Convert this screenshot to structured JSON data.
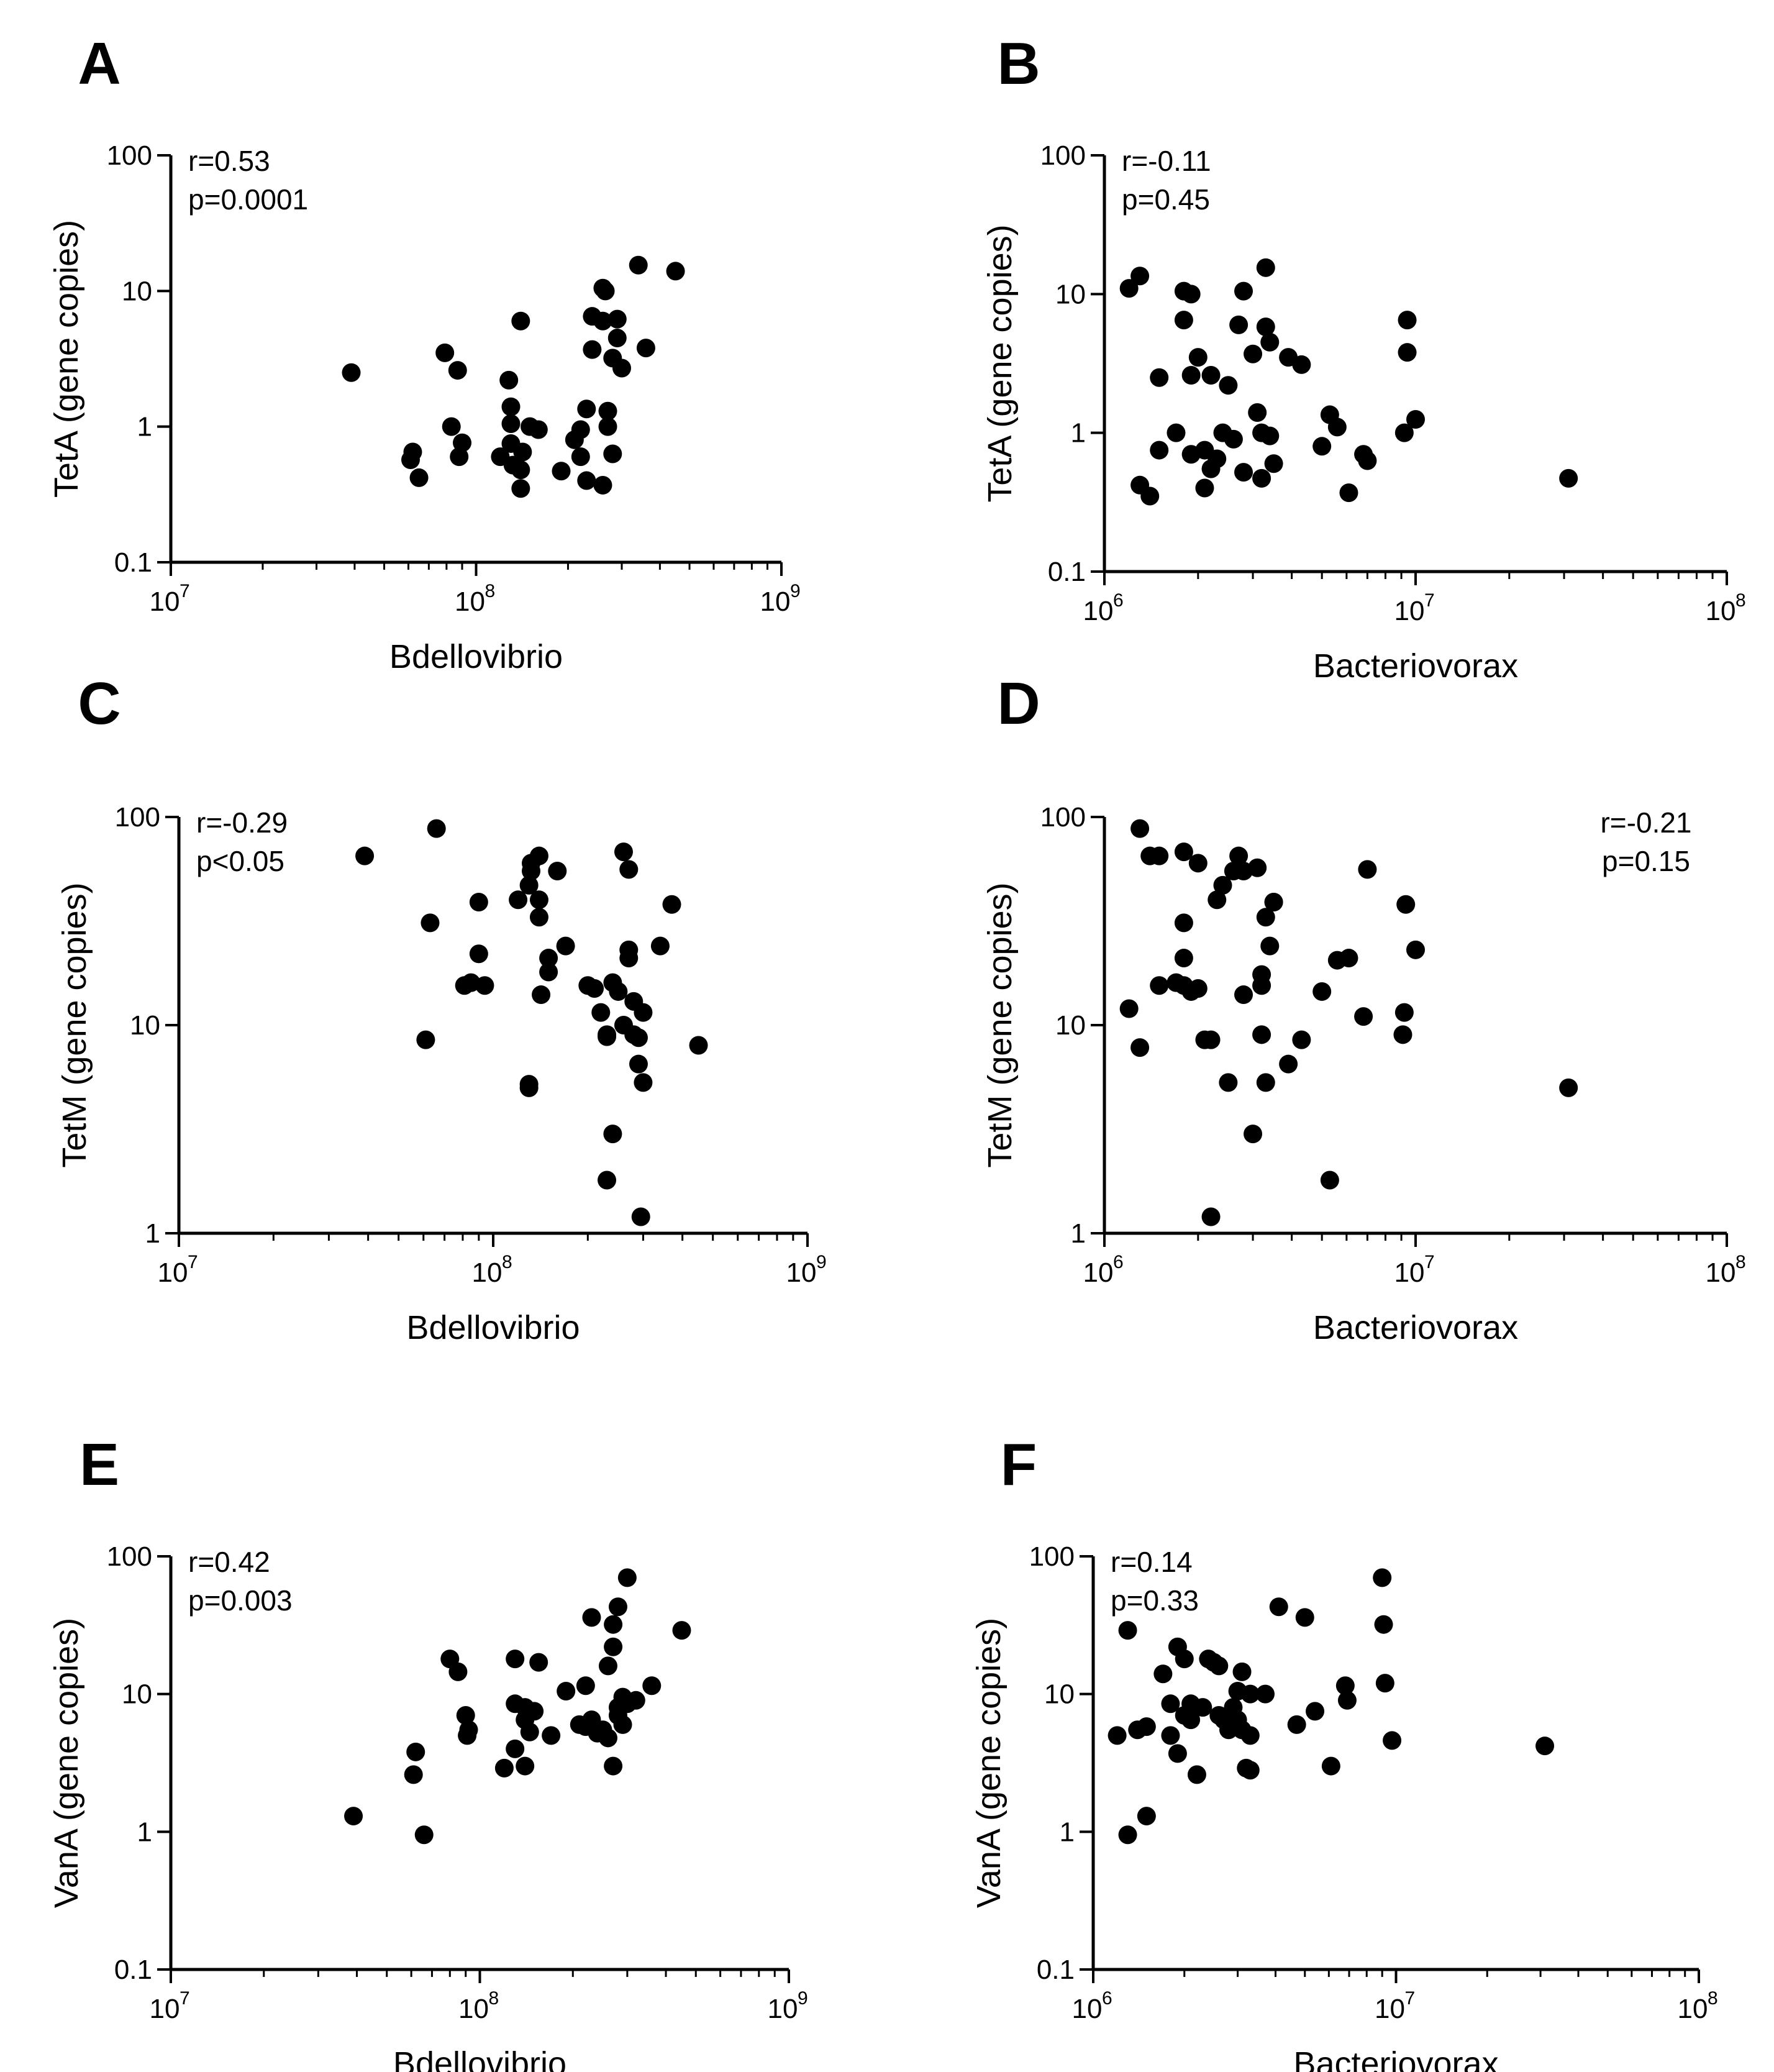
{
  "chart_data": [
    {
      "panel": "A",
      "type": "scatter",
      "xlabel": "Bdellovibrio",
      "ylabel": "TetA (gene copies)",
      "x_scale": "log",
      "y_scale": "log",
      "xlim": [
        10000000,
        1000000000
      ],
      "ylim": [
        0.1,
        100
      ],
      "x_ticks": [
        {
          "base": "10",
          "exp": "7"
        },
        {
          "base": "10",
          "exp": "8"
        },
        {
          "base": "10",
          "exp": "9"
        }
      ],
      "y_ticks": [
        "0.1",
        "1",
        "10",
        "100"
      ],
      "annotations": [
        "r=0.53",
        "p=0.0001"
      ],
      "annotation_position": "top-left",
      "points": [
        [
          39000000.0,
          2.5
        ],
        [
          61000000.0,
          0.57
        ],
        [
          62000000.0,
          0.65
        ],
        [
          65000000.0,
          0.42
        ],
        [
          79000000.0,
          3.5
        ],
        [
          83000000.0,
          1.0
        ],
        [
          87000000.0,
          2.6
        ],
        [
          88000000.0,
          0.6
        ],
        [
          90000000.0,
          0.76
        ],
        [
          120000000.0,
          0.6
        ],
        [
          128000000.0,
          2.2
        ],
        [
          130000000.0,
          1.4
        ],
        [
          130000000.0,
          1.05
        ],
        [
          130000000.0,
          0.75
        ],
        [
          132000000.0,
          0.52
        ],
        [
          140000000.0,
          6.0
        ],
        [
          142000000.0,
          0.65
        ],
        [
          140000000.0,
          0.48
        ],
        [
          140000000.0,
          0.35
        ],
        [
          150000000.0,
          1.0
        ],
        [
          160000000.0,
          0.95
        ],
        [
          190000000.0,
          0.47
        ],
        [
          210000000.0,
          0.8
        ],
        [
          220000000.0,
          0.95
        ],
        [
          220000000.0,
          0.6
        ],
        [
          230000000.0,
          1.35
        ],
        [
          230000000.0,
          0.4
        ],
        [
          240000000.0,
          6.5
        ],
        [
          240000000.0,
          3.7
        ],
        [
          260000000.0,
          10.5
        ],
        [
          265000000.0,
          10.0
        ],
        [
          260000000.0,
          6.0
        ],
        [
          270000000.0,
          1.3
        ],
        [
          270000000.0,
          1.0
        ],
        [
          280000000.0,
          0.63
        ],
        [
          260000000.0,
          0.37
        ],
        [
          280000000.0,
          3.2
        ],
        [
          290000000.0,
          4.5
        ],
        [
          290000000.0,
          6.2
        ],
        [
          300000000.0,
          2.7
        ],
        [
          340000000.0,
          15.5
        ],
        [
          360000000.0,
          3.8
        ],
        [
          450000000.0,
          14.0
        ]
      ]
    },
    {
      "panel": "B",
      "type": "scatter",
      "xlabel": "Bacteriovorax",
      "ylabel": "TetA (gene copies)",
      "x_scale": "log",
      "y_scale": "log",
      "xlim": [
        1000000,
        100000000
      ],
      "ylim": [
        0.1,
        100
      ],
      "x_ticks": [
        {
          "base": "10",
          "exp": "6"
        },
        {
          "base": "10",
          "exp": "7"
        },
        {
          "base": "10",
          "exp": "8"
        }
      ],
      "y_ticks": [
        "0.1",
        "1",
        "10",
        "100"
      ],
      "annotations": [
        "r=-0.11",
        "p=0.45"
      ],
      "annotation_position": "top-left",
      "points": [
        [
          1200000.0,
          11.0
        ],
        [
          1300000.0,
          13.5
        ],
        [
          1300000.0,
          0.42
        ],
        [
          1400000.0,
          0.35
        ],
        [
          1500000.0,
          2.5
        ],
        [
          1500000.0,
          0.75
        ],
        [
          1700000.0,
          1.0
        ],
        [
          1800000.0,
          10.5
        ],
        [
          1800000.0,
          6.5
        ],
        [
          1900000.0,
          10.0
        ],
        [
          1900000.0,
          2.6
        ],
        [
          2000000.0,
          3.5
        ],
        [
          1900000.0,
          0.7
        ],
        [
          2100000.0,
          0.75
        ],
        [
          2100000.0,
          0.4
        ],
        [
          2200000.0,
          0.55
        ],
        [
          2200000.0,
          2.6
        ],
        [
          2300000.0,
          0.65
        ],
        [
          2400000.0,
          1.0
        ],
        [
          2500000.0,
          2.2
        ],
        [
          2600000.0,
          0.9
        ],
        [
          2700000.0,
          6.0
        ],
        [
          2800000.0,
          10.5
        ],
        [
          2800000.0,
          0.52
        ],
        [
          3000000.0,
          3.7
        ],
        [
          3100000.0,
          1.4
        ],
        [
          3200000.0,
          1.0
        ],
        [
          3200000.0,
          0.47
        ],
        [
          3300000.0,
          5.8
        ],
        [
          3300000.0,
          15.5
        ],
        [
          3400000.0,
          4.5
        ],
        [
          3400000.0,
          0.95
        ],
        [
          3500000.0,
          0.6
        ],
        [
          3900000.0,
          3.5
        ],
        [
          4300000.0,
          3.1
        ],
        [
          5000000.0,
          0.8
        ],
        [
          5300000.0,
          1.35
        ],
        [
          5600000.0,
          1.1
        ],
        [
          6100000.0,
          0.37
        ],
        [
          6800000.0,
          0.7
        ],
        [
          7000000.0,
          0.63
        ],
        [
          9200000.0,
          1.0
        ],
        [
          9400000.0,
          6.5
        ],
        [
          9400000.0,
          3.8
        ],
        [
          10000000.0,
          1.25
        ],
        [
          31000000.0,
          0.47
        ]
      ]
    },
    {
      "panel": "C",
      "type": "scatter",
      "xlabel": "Bdellovibrio",
      "ylabel": "TetM (gene copies)",
      "x_scale": "log",
      "y_scale": "log",
      "xlim": [
        10000000,
        1000000000
      ],
      "ylim": [
        1,
        100
      ],
      "x_ticks": [
        {
          "base": "10",
          "exp": "7"
        },
        {
          "base": "10",
          "exp": "8"
        },
        {
          "base": "10",
          "exp": "9"
        }
      ],
      "y_ticks": [
        "1",
        "10",
        "100"
      ],
      "annotations": [
        "r=-0.29",
        "p<0.05"
      ],
      "annotation_position": "top-left",
      "points": [
        [
          39000000.0,
          65.0
        ],
        [
          61000000.0,
          8.5
        ],
        [
          63000000.0,
          31.0
        ],
        [
          66000000.0,
          88.0
        ],
        [
          81000000.0,
          15.5
        ],
        [
          85000000.0,
          16.0
        ],
        [
          90000000.0,
          39.0
        ],
        [
          90000000.0,
          22.0
        ],
        [
          94000000.0,
          15.5
        ],
        [
          120000000.0,
          40.0
        ],
        [
          130000000.0,
          47.0
        ],
        [
          132000000.0,
          55.0
        ],
        [
          132000000.0,
          60.0
        ],
        [
          130000000.0,
          5.2
        ],
        [
          130000000.0,
          5.0
        ],
        [
          140000000.0,
          65.0
        ],
        [
          140000000.0,
          40.0
        ],
        [
          140000000.0,
          33.0
        ],
        [
          142000000.0,
          14.0
        ],
        [
          150000000.0,
          21.0
        ],
        [
          150000000.0,
          18.0
        ],
        [
          160000000.0,
          55.0
        ],
        [
          170000000.0,
          24.0
        ],
        [
          200000000.0,
          15.5
        ],
        [
          210000000.0,
          15.0
        ],
        [
          220000000.0,
          11.5
        ],
        [
          230000000.0,
          9.0
        ],
        [
          230000000.0,
          8.8
        ],
        [
          230000000.0,
          1.8
        ],
        [
          240000000.0,
          16.0
        ],
        [
          240000000.0,
          3.0
        ],
        [
          250000000.0,
          14.5
        ],
        [
          260000000.0,
          10.0
        ],
        [
          260000000.0,
          68.0
        ],
        [
          270000000.0,
          56.0
        ],
        [
          270000000.0,
          23.0
        ],
        [
          270000000.0,
          21.0
        ],
        [
          280000000.0,
          13.0
        ],
        [
          280000000.0,
          9.0
        ],
        [
          290000000.0,
          8.7
        ],
        [
          290000000.0,
          6.5
        ],
        [
          300000000.0,
          11.5
        ],
        [
          300000000.0,
          5.3
        ],
        [
          295000000.0,
          1.2
        ],
        [
          340000000.0,
          24.0
        ],
        [
          370000000.0,
          38.0
        ],
        [
          450000000.0,
          8.0
        ]
      ]
    },
    {
      "panel": "D",
      "type": "scatter",
      "xlabel": "Bacteriovorax",
      "ylabel": "TetM (gene copies)",
      "x_scale": "log",
      "y_scale": "log",
      "xlim": [
        1000000,
        100000000
      ],
      "ylim": [
        1,
        100
      ],
      "x_ticks": [
        {
          "base": "10",
          "exp": "6"
        },
        {
          "base": "10",
          "exp": "7"
        },
        {
          "base": "10",
          "exp": "8"
        }
      ],
      "y_ticks": [
        "1",
        "10",
        "100"
      ],
      "annotations": [
        "r=-0.21",
        "p=0.15"
      ],
      "annotation_position": "top-right",
      "points": [
        [
          1200000.0,
          12.0
        ],
        [
          1300000.0,
          88.0
        ],
        [
          1300000.0,
          7.8
        ],
        [
          1400000.0,
          65.0
        ],
        [
          1500000.0,
          65.0
        ],
        [
          1500000.0,
          15.5
        ],
        [
          1700000.0,
          16.0
        ],
        [
          1800000.0,
          68.0
        ],
        [
          1800000.0,
          31.0
        ],
        [
          1800000.0,
          21.0
        ],
        [
          1800000.0,
          15.5
        ],
        [
          1900000.0,
          14.5
        ],
        [
          2000000.0,
          15.0
        ],
        [
          2000000.0,
          60.0
        ],
        [
          2100000.0,
          8.5
        ],
        [
          2200000.0,
          8.5
        ],
        [
          2200000.0,
          1.2
        ],
        [
          2300000.0,
          40.0
        ],
        [
          2400000.0,
          47.0
        ],
        [
          2500000.0,
          5.3
        ],
        [
          2600000.0,
          55.0
        ],
        [
          2700000.0,
          65.0
        ],
        [
          2800000.0,
          55.0
        ],
        [
          2800000.0,
          14.0
        ],
        [
          3000000.0,
          3.0
        ],
        [
          3100000.0,
          57.0
        ],
        [
          3200000.0,
          15.5
        ],
        [
          3200000.0,
          17.5
        ],
        [
          3200000.0,
          9.0
        ],
        [
          3300000.0,
          33.0
        ],
        [
          3300000.0,
          5.3
        ],
        [
          3400000.0,
          24.0
        ],
        [
          3500000.0,
          39.0
        ],
        [
          3500000.0,
          39.0
        ],
        [
          3900000.0,
          6.5
        ],
        [
          4300000.0,
          8.5
        ],
        [
          5000000.0,
          14.5
        ],
        [
          5300000.0,
          1.8
        ],
        [
          5600000.0,
          20.5
        ],
        [
          6100000.0,
          21.0
        ],
        [
          6800000.0,
          11.0
        ],
        [
          7000000.0,
          56.0
        ],
        [
          9100000.0,
          9.0
        ],
        [
          9200000.0,
          11.5
        ],
        [
          9300000.0,
          38.0
        ],
        [
          10000000.0,
          23.0
        ],
        [
          31000000.0,
          5.0
        ]
      ]
    },
    {
      "panel": "E",
      "type": "scatter",
      "xlabel": "Bdellovibrio",
      "ylabel": "VanA (gene copies)",
      "x_scale": "log",
      "y_scale": "log",
      "xlim": [
        10000000,
        1000000000
      ],
      "ylim": [
        0.1,
        100
      ],
      "x_ticks": [
        {
          "base": "10",
          "exp": "7"
        },
        {
          "base": "10",
          "exp": "8"
        },
        {
          "base": "10",
          "exp": "9"
        }
      ],
      "y_ticks": [
        "0.1",
        "1",
        "10",
        "100"
      ],
      "annotations": [
        "r=0.42",
        "p=0.003"
      ],
      "annotation_position": "top-left",
      "points": [
        [
          39000000.0,
          1.3
        ],
        [
          61000000.0,
          2.6
        ],
        [
          62000000.0,
          3.8
        ],
        [
          66000000.0,
          0.95
        ],
        [
          80000000.0,
          18.0
        ],
        [
          85000000.0,
          14.5
        ],
        [
          90000000.0,
          7.0
        ],
        [
          91000000.0,
          5.0
        ],
        [
          92000000.0,
          5.5
        ],
        [
          120000000.0,
          2.9
        ],
        [
          130000000.0,
          18.0
        ],
        [
          130000000.0,
          8.5
        ],
        [
          130000000.0,
          4.0
        ],
        [
          140000000.0,
          8.0
        ],
        [
          140000000.0,
          6.5
        ],
        [
          140000000.0,
          3.0
        ],
        [
          145000000.0,
          5.3
        ],
        [
          150000000.0,
          7.5
        ],
        [
          155000000.0,
          17.0
        ],
        [
          170000000.0,
          5.0
        ],
        [
          190000000.0,
          10.5
        ],
        [
          210000000.0,
          6.0
        ],
        [
          220000000.0,
          11.5
        ],
        [
          220000000.0,
          5.8
        ],
        [
          230000000.0,
          36.0
        ],
        [
          230000000.0,
          6.5
        ],
        [
          240000000.0,
          5.2
        ],
        [
          250000000.0,
          5.5
        ],
        [
          260000000.0,
          16.0
        ],
        [
          260000000.0,
          4.8
        ],
        [
          270000000.0,
          32.0
        ],
        [
          270000000.0,
          22.0
        ],
        [
          270000000.0,
          3.0
        ],
        [
          280000000.0,
          43.0
        ],
        [
          280000000.0,
          8.0
        ],
        [
          280000000.0,
          7.0
        ],
        [
          290000000.0,
          6.0
        ],
        [
          290000000.0,
          9.5
        ],
        [
          300000000.0,
          70.0
        ],
        [
          300000000.0,
          8.5
        ],
        [
          320000000.0,
          9.0
        ],
        [
          360000000.0,
          11.5
        ],
        [
          450000000.0,
          29.0
        ]
      ]
    },
    {
      "panel": "F",
      "type": "scatter",
      "xlabel": "Bacteriovorax",
      "ylabel": "VanA (gene copies)",
      "x_scale": "log",
      "y_scale": "log",
      "xlim": [
        1000000,
        100000000
      ],
      "ylim": [
        0.1,
        100
      ],
      "x_ticks": [
        {
          "base": "10",
          "exp": "6"
        },
        {
          "base": "10",
          "exp": "7"
        },
        {
          "base": "10",
          "exp": "8"
        }
      ],
      "y_ticks": [
        "0.1",
        "1",
        "10",
        "100"
      ],
      "annotations": [
        "r=0.14",
        "p=0.33"
      ],
      "annotation_position": "top-left",
      "points": [
        [
          1200000.0,
          5.0
        ],
        [
          1300000.0,
          29.0
        ],
        [
          1300000.0,
          0.95
        ],
        [
          1400000.0,
          5.5
        ],
        [
          1500000.0,
          5.8
        ],
        [
          1500000.0,
          1.3
        ],
        [
          1700000.0,
          14.0
        ],
        [
          1800000.0,
          8.5
        ],
        [
          1800000.0,
          5.0
        ],
        [
          1900000.0,
          22.0
        ],
        [
          1900000.0,
          3.7
        ],
        [
          2000000.0,
          18.0
        ],
        [
          2000000.0,
          7.0
        ],
        [
          2100000.0,
          8.5
        ],
        [
          2100000.0,
          6.5
        ],
        [
          2200000.0,
          2.6
        ],
        [
          2300000.0,
          8.0
        ],
        [
          2400000.0,
          18.0
        ],
        [
          2500000.0,
          17.0
        ],
        [
          2600000.0,
          16.0
        ],
        [
          2600000.0,
          7.0
        ],
        [
          2700000.0,
          6.5
        ],
        [
          2800000.0,
          5.5
        ],
        [
          2900000.0,
          8.0
        ],
        [
          3000000.0,
          10.5
        ],
        [
          3000000.0,
          6.5
        ],
        [
          3100000.0,
          14.5
        ],
        [
          3100000.0,
          5.5
        ],
        [
          3200000.0,
          2.9
        ],
        [
          3300000.0,
          10.0
        ],
        [
          3300000.0,
          5.0
        ],
        [
          3300000.0,
          2.8
        ],
        [
          3700000.0,
          10.0
        ],
        [
          4100000.0,
          43.0
        ],
        [
          4700000.0,
          6.0
        ],
        [
          5000000.0,
          36.0
        ],
        [
          5400000.0,
          7.5
        ],
        [
          6100000.0,
          3.0
        ],
        [
          6800000.0,
          11.5
        ],
        [
          6900000.0,
          9.0
        ],
        [
          9000000.0,
          70.0
        ],
        [
          9100000.0,
          32.0
        ],
        [
          9200000.0,
          12.0
        ],
        [
          9700000.0,
          4.6
        ],
        [
          31000000.0,
          4.2
        ]
      ]
    }
  ]
}
